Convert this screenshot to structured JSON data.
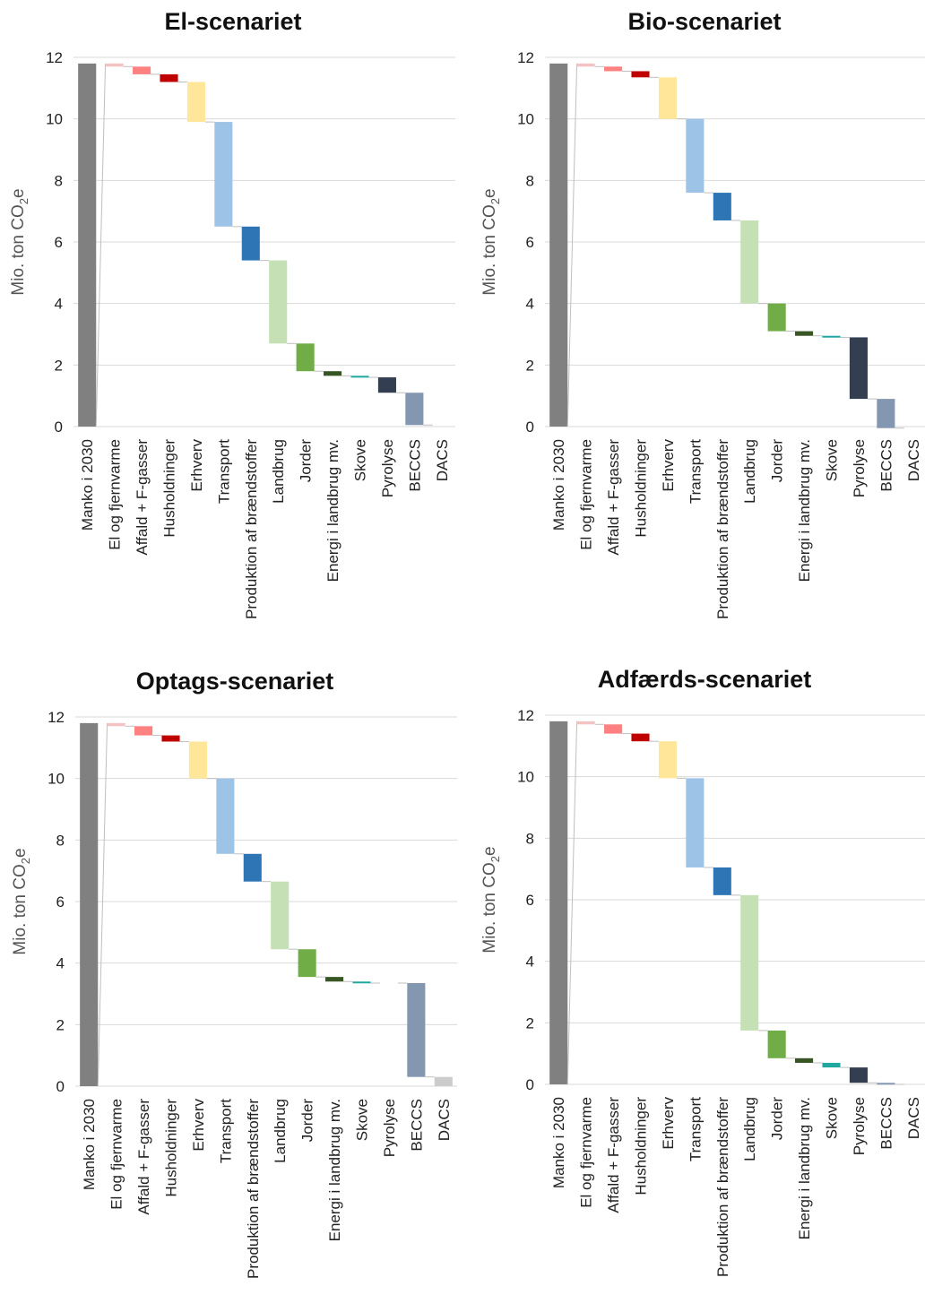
{
  "categories": [
    "Manko i 2030",
    "El og fjernvarme",
    "Affald + F-gasser",
    "Husholdninger",
    "Erhverv",
    "Transport",
    "Produktion af brændstoffer",
    "Landbrug",
    "Jorder",
    "Energi i landbrug mv.",
    "Skove",
    "Pyrolyse",
    "BECCS",
    "DACS"
  ],
  "colors": [
    "#808080",
    "#f4c2c2",
    "#ff8080",
    "#c00000",
    "#ffe699",
    "#9dc3e6",
    "#2e75b6",
    "#c5e0b4",
    "#70ad47",
    "#375623",
    "#1fa7a0",
    "#333f50",
    "#8497b0",
    "#cccccc"
  ],
  "axis": {
    "ylabel_main": "Mio. ton CO",
    "ylabel_sub": "2",
    "ylabel_end": "e",
    "ticks": [
      "0",
      "2",
      "4",
      "6",
      "8",
      "10",
      "12"
    ]
  },
  "chart_data": [
    {
      "type": "bar",
      "subtype": "waterfall",
      "title": "El-scenariet",
      "ylabel": "Mio. ton CO2e",
      "ylim": [
        0,
        12
      ],
      "categories": [
        "Manko i 2030",
        "El og fjernvarme",
        "Affald + F-gasser",
        "Husholdninger",
        "Erhverv",
        "Transport",
        "Produktion af brændstoffer",
        "Landbrug",
        "Jorder",
        "Energi i landbrug mv.",
        "Skove",
        "Pyrolyse",
        "BECCS",
        "DACS"
      ],
      "values": [
        11.8,
        0.1,
        0.25,
        0.25,
        1.3,
        3.4,
        1.1,
        2.7,
        0.9,
        0.15,
        0.05,
        0.5,
        1.05,
        0.0
      ]
    },
    {
      "type": "bar",
      "subtype": "waterfall",
      "title": "Bio-scenariet",
      "ylabel": "Mio. ton CO2e",
      "ylim": [
        0,
        12
      ],
      "categories": [
        "Manko i 2030",
        "El og fjernvarme",
        "Affald + F-gasser",
        "Husholdninger",
        "Erhverv",
        "Transport",
        "Produktion af brændstoffer",
        "Landbrug",
        "Jorder",
        "Energi i landbrug mv.",
        "Skove",
        "Pyrolyse",
        "BECCS",
        "DACS"
      ],
      "values": [
        11.8,
        0.1,
        0.15,
        0.2,
        1.35,
        2.4,
        0.9,
        2.7,
        0.9,
        0.15,
        0.05,
        2.0,
        0.95,
        0.0
      ]
    },
    {
      "type": "bar",
      "subtype": "waterfall",
      "title": "Optags-scenariet",
      "ylabel": "Mio. ton CO2e",
      "ylim": [
        0,
        12
      ],
      "categories": [
        "Manko i 2030",
        "El og fjernvarme",
        "Affald + F-gasser",
        "Husholdninger",
        "Erhverv",
        "Transport",
        "Produktion af brændstoffer",
        "Landbrug",
        "Jorder",
        "Energi i landbrug mv.",
        "Skove",
        "Pyrolyse",
        "BECCS",
        "DACS"
      ],
      "values": [
        11.8,
        0.1,
        0.3,
        0.2,
        1.2,
        2.45,
        0.9,
        2.2,
        0.9,
        0.15,
        0.05,
        0.0,
        3.05,
        0.3
      ]
    },
    {
      "type": "bar",
      "subtype": "waterfall",
      "title": "Adfærds-scenariet",
      "ylabel": "Mio. ton CO2e",
      "ylim": [
        0,
        12
      ],
      "categories": [
        "Manko i 2030",
        "El og fjernvarme",
        "Affald + F-gasser",
        "Husholdninger",
        "Erhverv",
        "Transport",
        "Produktion af brændstoffer",
        "Landbrug",
        "Jorder",
        "Energi i landbrug mv.",
        "Skove",
        "Pyrolyse",
        "BECCS",
        "DACS"
      ],
      "values": [
        11.8,
        0.1,
        0.3,
        0.25,
        1.2,
        2.9,
        0.9,
        4.4,
        0.9,
        0.15,
        0.15,
        0.5,
        0.05,
        0.0
      ]
    }
  ]
}
